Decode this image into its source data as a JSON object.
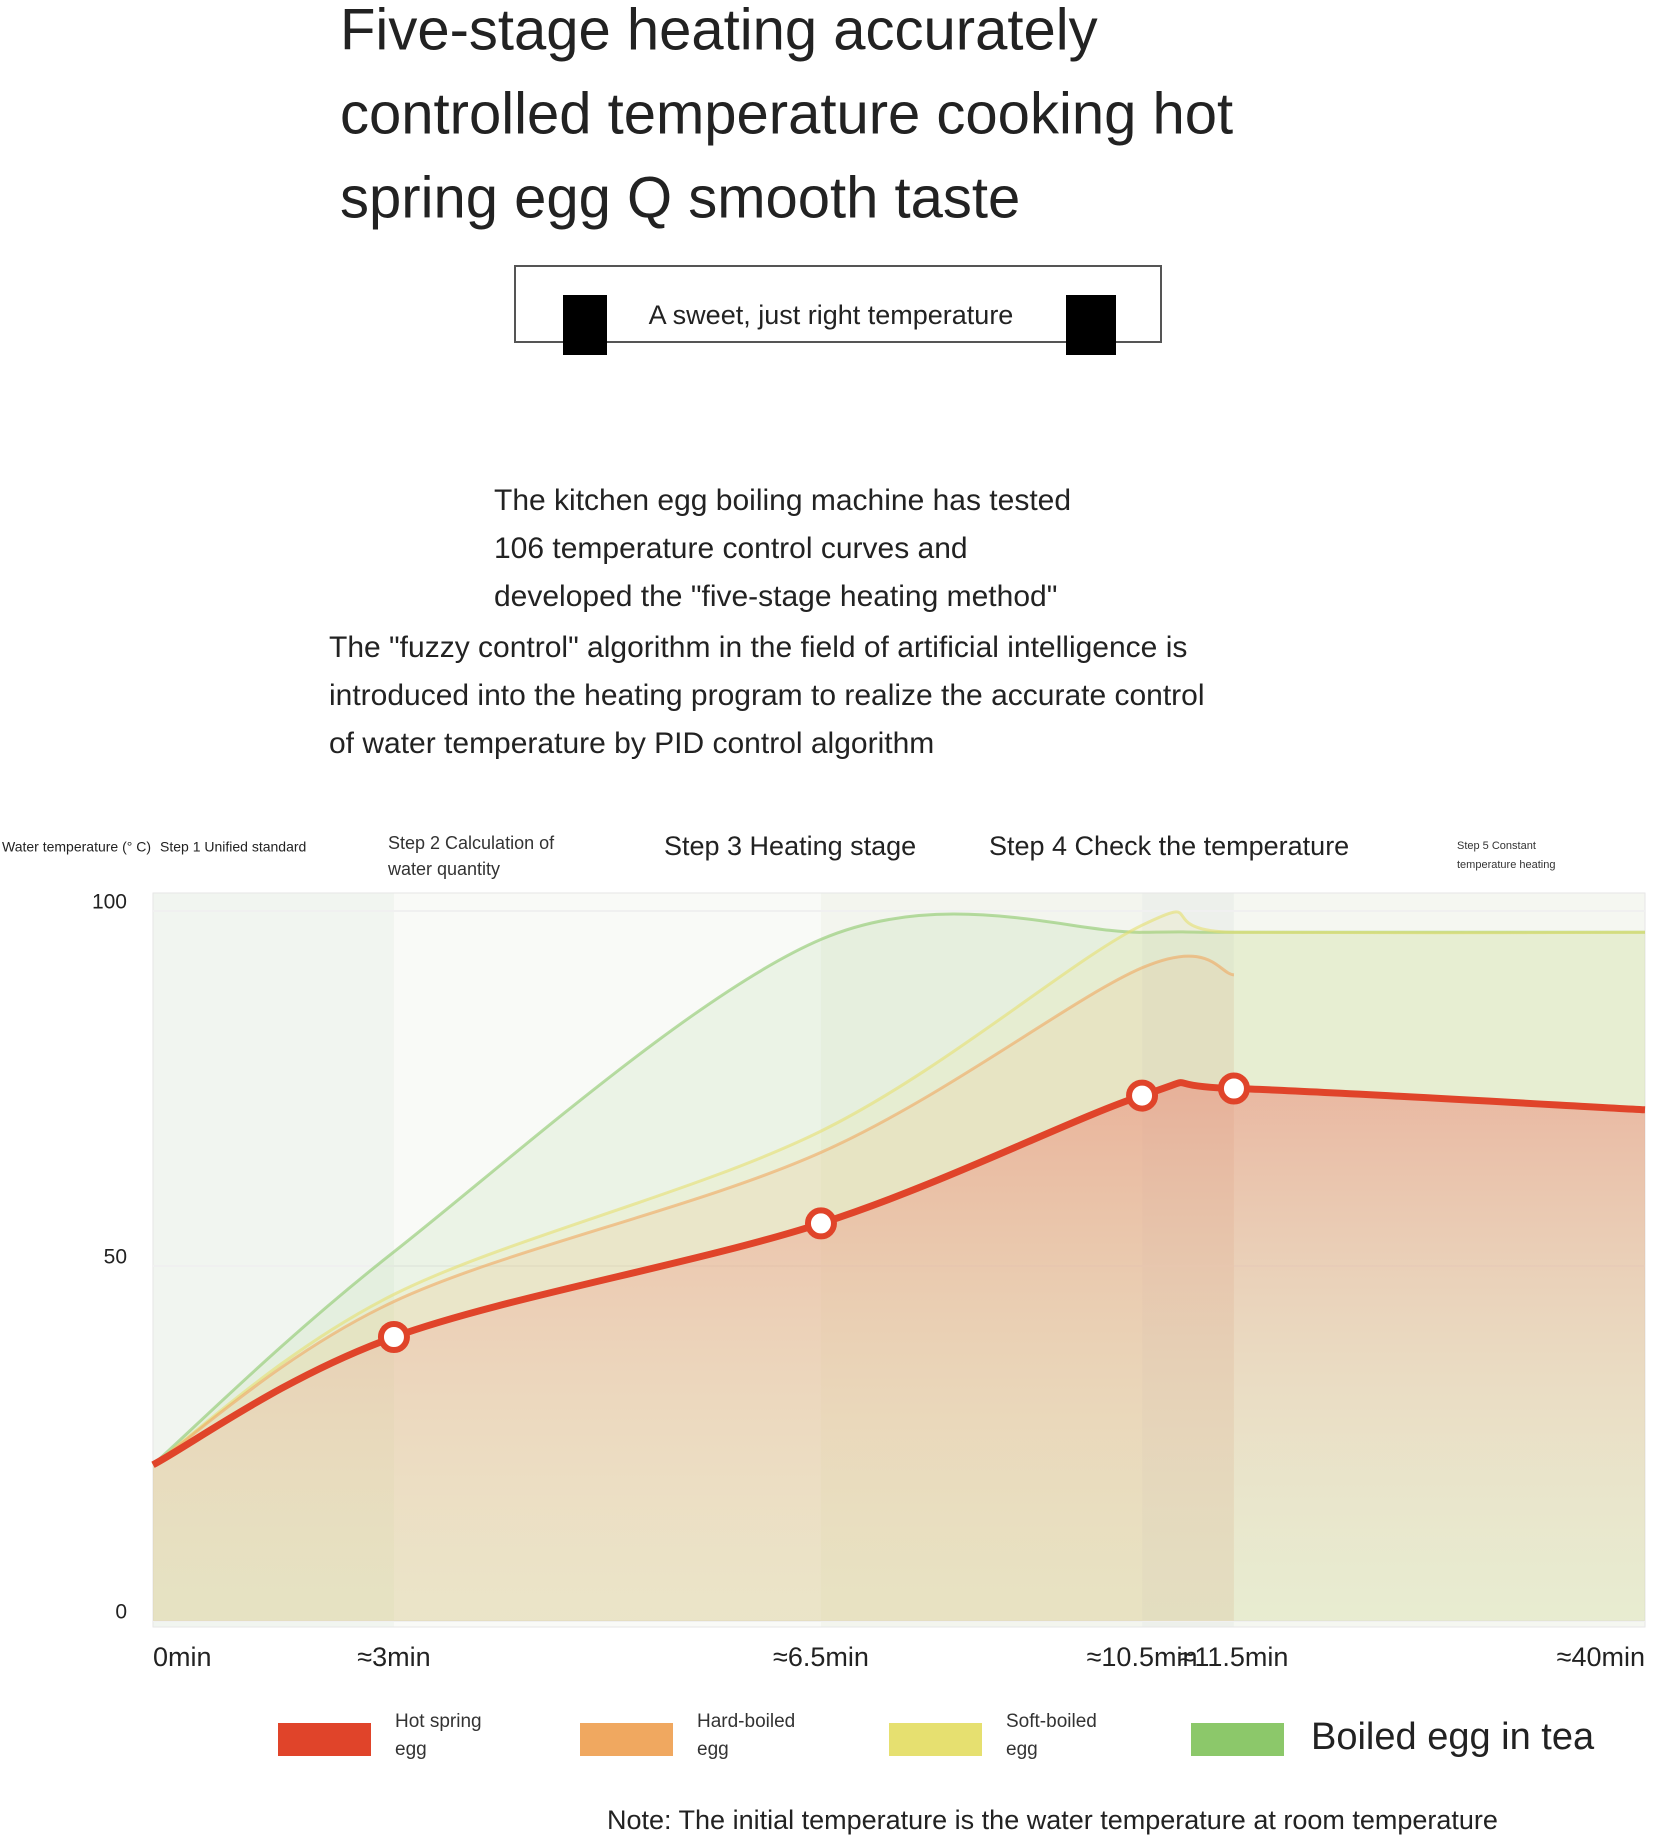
{
  "header": {
    "title": [
      "Five-stage heating accurately",
      "controlled temperature cooking hot",
      "spring egg Q smooth taste"
    ],
    "tagline": "A sweet, just right temperature"
  },
  "intro": [
    [
      "The kitchen egg boiling machine has tested",
      "106 temperature control curves and",
      "developed the \"five-stage heating method\""
    ],
    [
      "The \"fuzzy control\" algorithm in the field of artificial intelligence is",
      "introduced into the heating program to realize the accurate control",
      "of water temperature by PID control algorithm"
    ]
  ],
  "chart_data": {
    "type": "line",
    "y_label": "Water temperature (° C)",
    "steps": [
      "Step 1 Unified standard",
      "Step 2 Calculation of water quantity",
      "Step 3 Heating stage",
      "Step 4 Check the temperature",
      "Step 5 Constant temperature heating"
    ],
    "categories": [
      "0min",
      "≈3min",
      "≈6.5min",
      "≈10.5min",
      "≈11.5min",
      "≈40min"
    ],
    "ylim": [
      0,
      100
    ],
    "yticks": [
      0,
      50,
      100
    ],
    "grid": true,
    "series": [
      {
        "name": "Boiled egg in tea",
        "color": "#8cc86a",
        "values": [
          22,
          52,
          96,
          97,
          97,
          97
        ]
      },
      {
        "name": "Soft-boiled egg",
        "color": "#e6e070",
        "values": [
          22,
          46,
          69,
          98,
          97,
          97
        ]
      },
      {
        "name": "Hard-boiled egg",
        "color": "#f0a860",
        "values": [
          22,
          45,
          66,
          92,
          91,
          null
        ]
      },
      {
        "name": "Hot spring egg",
        "color": "#e0442a",
        "values": [
          22,
          40,
          56,
          74,
          75,
          72
        ],
        "markers": true
      }
    ],
    "note": "Note: The initial temperature is the water temperature at room temperature"
  }
}
